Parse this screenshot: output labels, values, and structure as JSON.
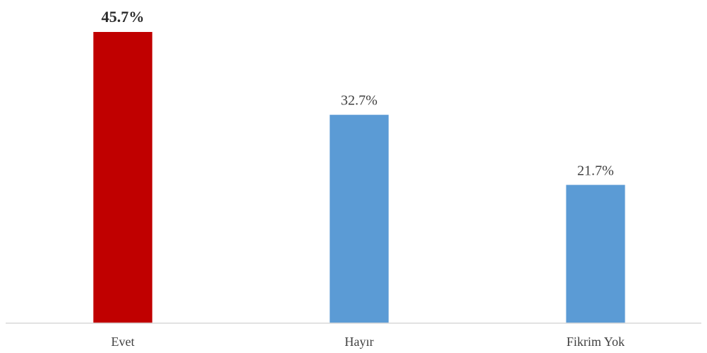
{
  "chart_data": {
    "type": "bar",
    "title": "",
    "xlabel": "",
    "ylabel": "",
    "categories": [
      "Evet",
      "Hayır",
      "Fikrim Yok"
    ],
    "values": [
      45.7,
      32.7,
      21.7
    ],
    "value_labels": [
      "45.7%",
      "32.7%",
      "21.7%"
    ],
    "label_bold": [
      true,
      false,
      false
    ],
    "colors": [
      "#c00000",
      "#5b9bd5",
      "#5b9bd5"
    ],
    "ylim": [
      0,
      50
    ],
    "grid": false,
    "legend": "none"
  }
}
